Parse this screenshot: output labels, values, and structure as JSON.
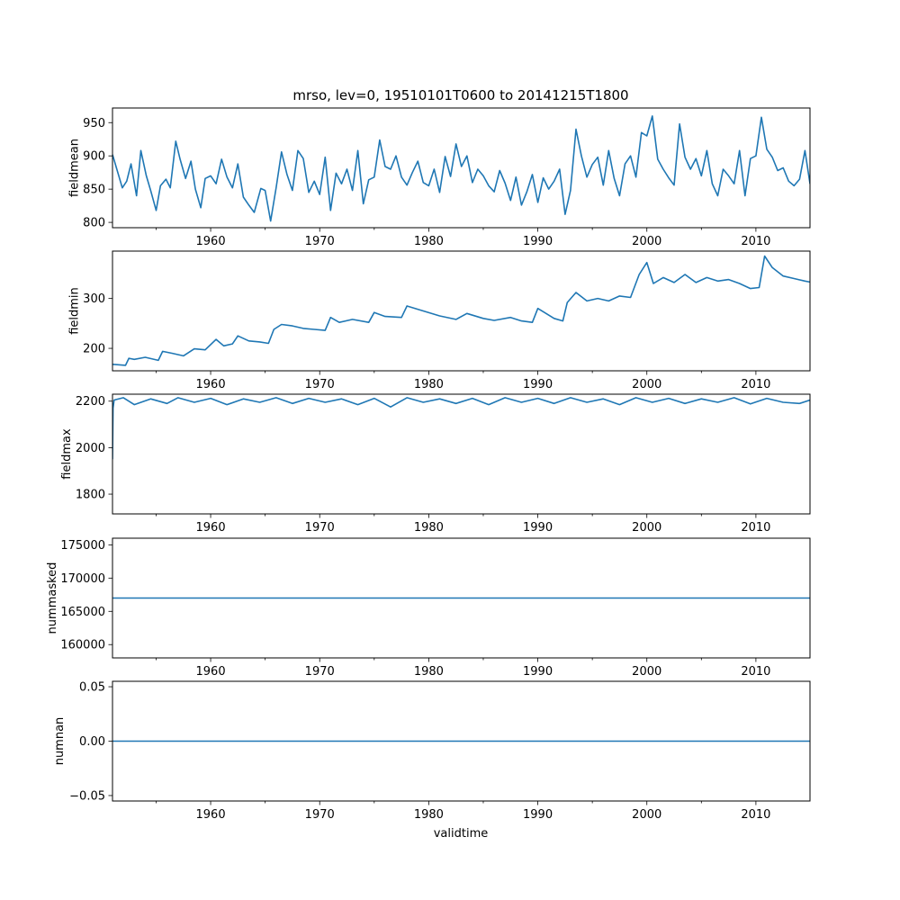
{
  "figure": {
    "title": "mrso, lev=0, 19510101T0600 to 20141215T1800",
    "xlabel": "validtime"
  },
  "colors": {
    "line": "#1f77b4",
    "axes": "#000000",
    "background": "#ffffff"
  },
  "chart_data": [
    {
      "type": "line",
      "ylabel": "fieldmean",
      "xlim": [
        1951.0,
        2014.96
      ],
      "ylim": [
        792,
        972
      ],
      "xticks": [
        1960,
        1970,
        1980,
        1990,
        2000,
        2010
      ],
      "xtick_labels": [
        "1960",
        "1970",
        "1980",
        "1990",
        "2000",
        "2010"
      ],
      "yticks": [
        800,
        850,
        900,
        950
      ],
      "ytick_labels": [
        "800",
        "850",
        "900",
        "950"
      ],
      "series": [
        {
          "name": "fieldmean",
          "x": [
            1951.0,
            1951.4,
            1951.9,
            1952.3,
            1952.7,
            1953.2,
            1953.6,
            1954.1,
            1954.5,
            1955.0,
            1955.4,
            1955.9,
            1956.3,
            1956.8,
            1957.2,
            1957.7,
            1958.2,
            1958.6,
            1959.1,
            1959.5,
            1960.0,
            1960.5,
            1961.0,
            1961.5,
            1962.0,
            1962.5,
            1963.0,
            1963.5,
            1964.0,
            1964.6,
            1965.0,
            1965.5,
            1966.0,
            1966.5,
            1967.0,
            1967.5,
            1968.0,
            1968.5,
            1969.0,
            1969.5,
            1970.0,
            1970.5,
            1971.0,
            1971.5,
            1972.0,
            1972.5,
            1973.0,
            1973.5,
            1974.0,
            1974.5,
            1975.0,
            1975.5,
            1976.0,
            1976.5,
            1977.0,
            1977.5,
            1978.0,
            1978.5,
            1979.0,
            1979.5,
            1980.0,
            1980.5,
            1981.0,
            1981.5,
            1982.0,
            1982.5,
            1983.0,
            1983.5,
            1984.0,
            1984.5,
            1985.0,
            1985.5,
            1986.0,
            1986.5,
            1987.0,
            1987.5,
            1988.0,
            1988.5,
            1989.0,
            1989.5,
            1990.0,
            1990.5,
            1991.0,
            1991.5,
            1992.0,
            1992.5,
            1993.0,
            1993.5,
            1994.0,
            1994.5,
            1995.0,
            1995.5,
            1996.0,
            1996.5,
            1997.0,
            1997.5,
            1998.0,
            1998.5,
            1999.0,
            1999.5,
            2000.0,
            2000.5,
            2001.0,
            2001.5,
            2002.0,
            2002.5,
            2003.0,
            2003.5,
            2004.0,
            2004.5,
            2005.0,
            2005.5,
            2006.0,
            2006.5,
            2007.0,
            2007.5,
            2008.0,
            2008.5,
            2009.0,
            2009.5,
            2010.0,
            2010.5,
            2011.0,
            2011.5,
            2012.0,
            2012.5,
            2013.0,
            2013.5,
            2014.0,
            2014.5,
            2014.96
          ],
          "y": [
            902,
            880,
            852,
            862,
            888,
            840,
            908,
            870,
            848,
            818,
            855,
            865,
            852,
            922,
            895,
            866,
            892,
            850,
            822,
            866,
            870,
            858,
            895,
            868,
            852,
            888,
            838,
            826,
            815,
            851,
            848,
            802,
            852,
            906,
            872,
            848,
            908,
            896,
            845,
            862,
            842,
            898,
            818,
            874,
            858,
            880,
            848,
            908,
            828,
            864,
            868,
            924,
            884,
            880,
            900,
            868,
            856,
            875,
            892,
            860,
            855,
            880,
            845,
            899,
            869,
            918,
            884,
            900,
            860,
            880,
            870,
            855,
            846,
            878,
            859,
            833,
            868,
            826,
            846,
            872,
            830,
            867,
            850,
            862,
            880,
            812,
            848,
            940,
            900,
            868,
            887,
            898,
            856,
            908,
            866,
            840,
            888,
            900,
            868,
            935,
            930,
            960,
            895,
            880,
            867,
            856,
            948,
            898,
            880,
            896,
            870,
            908,
            858,
            840,
            880,
            870,
            858,
            908,
            840,
            896,
            900,
            958,
            910,
            898,
            878,
            882,
            862,
            855,
            865,
            908,
            858
          ]
        }
      ]
    },
    {
      "type": "line",
      "ylabel": "fieldmin",
      "xlim": [
        1951.0,
        2014.96
      ],
      "ylim": [
        155,
        395
      ],
      "xticks": [
        1960,
        1970,
        1980,
        1990,
        2000,
        2010
      ],
      "xtick_labels": [
        "1960",
        "1970",
        "1980",
        "1990",
        "2000",
        "2010"
      ],
      "yticks": [
        200,
        300
      ],
      "ytick_labels": [
        "200",
        "300"
      ],
      "series": [
        {
          "name": "fieldmin",
          "x": [
            1951.0,
            1952.2,
            1952.5,
            1953.0,
            1954.0,
            1955.2,
            1955.6,
            1956.5,
            1957.5,
            1958.5,
            1959.5,
            1960.5,
            1961.2,
            1962.0,
            1962.5,
            1963.5,
            1964.5,
            1965.3,
            1965.8,
            1966.5,
            1967.5,
            1968.5,
            1969.5,
            1970.5,
            1971.0,
            1971.8,
            1973.0,
            1974.5,
            1975.0,
            1976.0,
            1977.5,
            1978.0,
            1979.5,
            1981.0,
            1982.5,
            1983.5,
            1985.0,
            1986.0,
            1987.5,
            1988.5,
            1989.5,
            1990.0,
            1991.5,
            1992.3,
            1992.7,
            1993.5,
            1994.5,
            1995.5,
            1996.5,
            1997.5,
            1998.5,
            1999.3,
            2000.0,
            2000.6,
            2001.5,
            2002.5,
            2003.5,
            2004.5,
            2005.5,
            2006.5,
            2007.5,
            2008.5,
            2009.5,
            2010.3,
            2010.8,
            2011.5,
            2012.5,
            2013.5,
            2014.5,
            2014.96
          ],
          "y": [
            168,
            166,
            180,
            178,
            182,
            176,
            194,
            190,
            185,
            199,
            197,
            218,
            205,
            209,
            225,
            215,
            213,
            210,
            238,
            248,
            245,
            240,
            238,
            236,
            262,
            252,
            258,
            252,
            272,
            264,
            262,
            285,
            275,
            265,
            258,
            270,
            260,
            256,
            262,
            255,
            252,
            280,
            260,
            255,
            292,
            312,
            295,
            300,
            295,
            305,
            302,
            348,
            372,
            330,
            342,
            332,
            348,
            332,
            342,
            335,
            338,
            330,
            320,
            322,
            385,
            362,
            345,
            340,
            335,
            333
          ]
        }
      ]
    },
    {
      "type": "line",
      "ylabel": "fieldmax",
      "xlim": [
        1951.0,
        2014.96
      ],
      "ylim": [
        1715,
        2230
      ],
      "xticks": [
        1960,
        1970,
        1980,
        1990,
        2000,
        2010
      ],
      "xtick_labels": [
        "1960",
        "1970",
        "1980",
        "1990",
        "2000",
        "2010"
      ],
      "yticks": [
        1800,
        2000,
        2200
      ],
      "ytick_labels": [
        "1800",
        "2000",
        "2200"
      ],
      "series": [
        {
          "name": "fieldmax",
          "x": [
            1951.0,
            1951.05,
            1951.15,
            1952.0,
            1953.0,
            1954.5,
            1956.0,
            1957.0,
            1958.5,
            1960.0,
            1961.5,
            1963.0,
            1964.5,
            1966.0,
            1967.5,
            1969.0,
            1970.5,
            1972.0,
            1973.5,
            1975.0,
            1976.5,
            1978.0,
            1979.5,
            1981.0,
            1982.5,
            1984.0,
            1985.5,
            1987.0,
            1988.5,
            1990.0,
            1991.5,
            1993.0,
            1994.5,
            1996.0,
            1997.5,
            1999.0,
            2000.5,
            2002.0,
            2003.5,
            2005.0,
            2006.5,
            2008.0,
            2009.5,
            2011.0,
            2012.5,
            2014.0,
            2014.96
          ],
          "y": [
            1950,
            2170,
            2205,
            2215,
            2185,
            2210,
            2190,
            2215,
            2195,
            2212,
            2185,
            2210,
            2195,
            2215,
            2190,
            2212,
            2195,
            2210,
            2185,
            2212,
            2175,
            2215,
            2195,
            2210,
            2190,
            2212,
            2185,
            2215,
            2195,
            2212,
            2190,
            2215,
            2195,
            2210,
            2185,
            2215,
            2195,
            2212,
            2190,
            2210,
            2195,
            2215,
            2188,
            2212,
            2195,
            2190,
            2205
          ]
        }
      ]
    },
    {
      "type": "line",
      "ylabel": "nummasked",
      "xlim": [
        1951.0,
        2014.96
      ],
      "ylim": [
        158000,
        176000
      ],
      "xticks": [
        1960,
        1970,
        1980,
        1990,
        2000,
        2010
      ],
      "xtick_labels": [
        "1960",
        "1970",
        "1980",
        "1990",
        "2000",
        "2010"
      ],
      "yticks": [
        160000,
        165000,
        170000,
        175000
      ],
      "ytick_labels": [
        "160000",
        "165000",
        "170000",
        "175000"
      ],
      "series": [
        {
          "name": "nummasked",
          "x": [
            1951.0,
            2014.96
          ],
          "y": [
            167000,
            167000
          ]
        }
      ]
    },
    {
      "type": "line",
      "ylabel": "numnan",
      "xlim": [
        1951.0,
        2014.96
      ],
      "ylim": [
        -0.055,
        0.055
      ],
      "xticks": [
        1960,
        1970,
        1980,
        1990,
        2000,
        2010
      ],
      "xtick_labels": [
        "1960",
        "1970",
        "1980",
        "1990",
        "2000",
        "2010"
      ],
      "yticks": [
        -0.05,
        0.0,
        0.05
      ],
      "ytick_labels": [
        "−0.05",
        "0.00",
        "0.05"
      ],
      "series": [
        {
          "name": "numnan",
          "x": [
            1951.0,
            2014.96
          ],
          "y": [
            0,
            0
          ]
        }
      ]
    }
  ]
}
